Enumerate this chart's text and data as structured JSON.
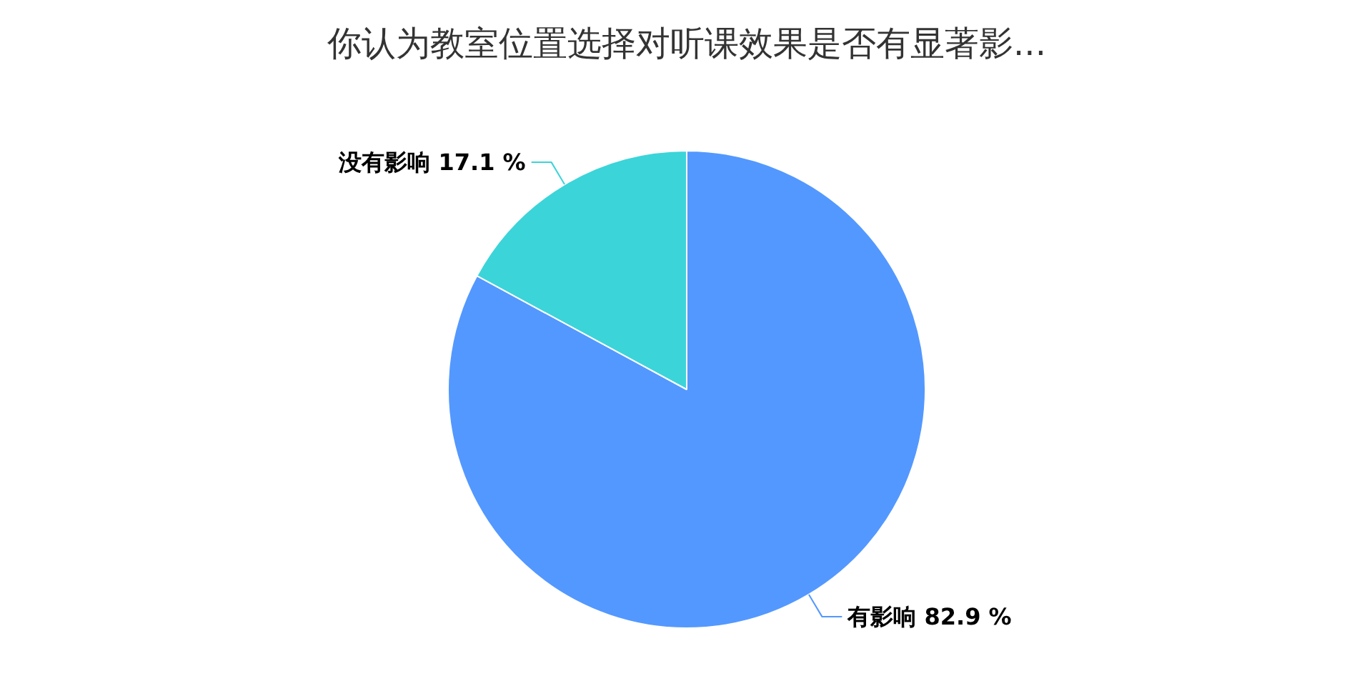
{
  "chart_data": {
    "type": "pie",
    "title": "你认为教室位置选择对听课效果是否有显著影...",
    "categories": [
      "有影响",
      "没有影响"
    ],
    "values": [
      82.9,
      17.1
    ],
    "colors": [
      "#5398ff",
      "#3bd4d9"
    ],
    "value_labels": [
      "82.9 %",
      "17.1 %"
    ]
  }
}
